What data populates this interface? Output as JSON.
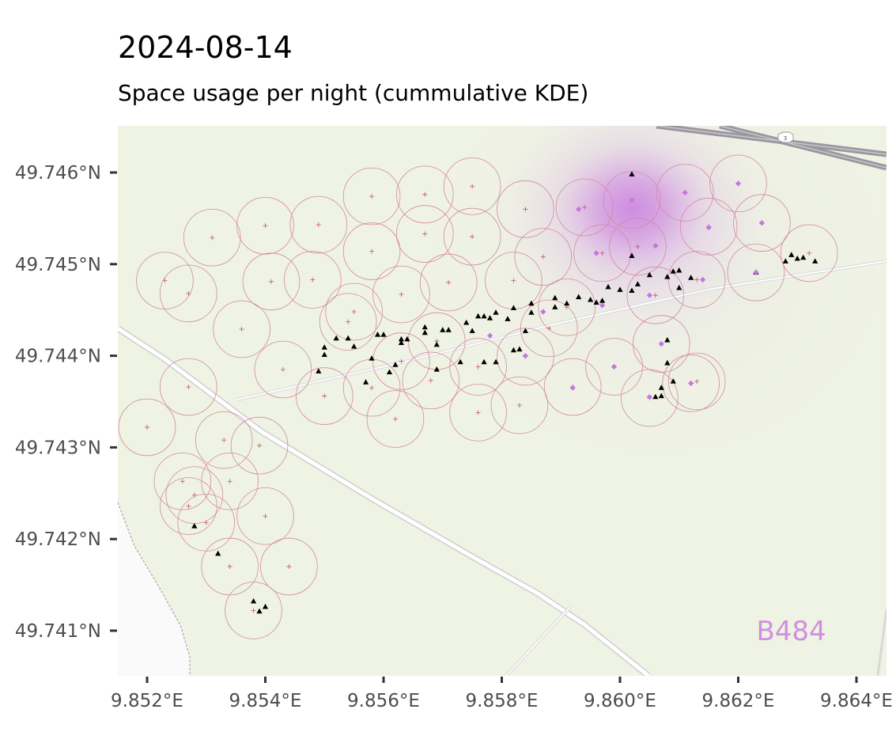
{
  "title": "2024-08-14",
  "subtitle": "Space usage per night (cummulative KDE)",
  "colors": {
    "land": "#eff3e3",
    "bare": "#fafafa",
    "road": "#ffffff",
    "road_edge": "#cfcfcf",
    "highway": "#9a979e",
    "circle": "#d38aa0",
    "center": "#c0566c",
    "locations": "#000000",
    "kde_points": "#c774e0",
    "kde": "#c774e0",
    "annotation": "#d08fe0"
  },
  "chart_data": {
    "type": "scatter",
    "title": "2024-08-14",
    "subtitle": "Space usage per night (cummulative KDE)",
    "xlabel": "",
    "ylabel": "",
    "xlim": [
      9.8515,
      9.8645
    ],
    "ylim": [
      49.7405,
      49.7465
    ],
    "grid": false,
    "legend": "none",
    "x_ticks": [
      {
        "value": 9.852,
        "label": "9.852°E"
      },
      {
        "value": 9.854,
        "label": "9.854°E"
      },
      {
        "value": 9.856,
        "label": "9.856°E"
      },
      {
        "value": 9.858,
        "label": "9.858°E"
      },
      {
        "value": 9.86,
        "label": "9.860°E"
      },
      {
        "value": 9.862,
        "label": "9.862°E"
      },
      {
        "value": 9.864,
        "label": "9.864°E"
      }
    ],
    "y_ticks": [
      {
        "value": 49.741,
        "label": "49.741°N"
      },
      {
        "value": 49.742,
        "label": "49.742°N"
      },
      {
        "value": 49.743,
        "label": "49.743°N"
      },
      {
        "value": 49.744,
        "label": "49.744°N"
      },
      {
        "value": 49.745,
        "label": "49.745°N"
      },
      {
        "value": 49.746,
        "label": "49.746°N"
      }
    ],
    "annotation": {
      "text": "B484",
      "x": 9.8633,
      "y": 49.741
    },
    "kde_peak": {
      "x": 9.8602,
      "y": 49.7456
    },
    "circle_radius_deg_lon": 0.00048,
    "circle_centers": [
      [
        9.852,
        49.74322
      ],
      [
        9.8526,
        49.74263
      ],
      [
        9.853,
        49.74218
      ],
      [
        9.8533,
        49.74308
      ],
      [
        9.8534,
        49.74263
      ],
      [
        9.8534,
        49.7417
      ],
      [
        9.8539,
        49.74302
      ],
      [
        9.854,
        49.74225
      ],
      [
        9.8544,
        49.7417
      ],
      [
        9.8538,
        49.74122
      ],
      [
        9.8527,
        49.74236
      ],
      [
        9.8528,
        49.74248
      ],
      [
        9.8527,
        49.74366
      ],
      [
        9.8523,
        49.74482
      ],
      [
        9.8527,
        49.74468
      ],
      [
        9.8531,
        49.74529
      ],
      [
        9.854,
        49.74542
      ],
      [
        9.8536,
        49.74429
      ],
      [
        9.8541,
        49.74481
      ],
      [
        9.8549,
        49.74543
      ],
      [
        9.8554,
        49.74437
      ],
      [
        9.8548,
        49.74483
      ],
      [
        9.8558,
        49.74574
      ],
      [
        9.8558,
        49.74514
      ],
      [
        9.8555,
        49.74448
      ],
      [
        9.8543,
        49.74385
      ],
      [
        9.855,
        49.74356
      ],
      [
        9.8558,
        49.74365
      ],
      [
        9.8563,
        49.74394
      ],
      [
        9.8563,
        49.74467
      ],
      [
        9.8567,
        49.74576
      ],
      [
        9.8567,
        49.74533
      ],
      [
        9.8571,
        49.7448
      ],
      [
        9.8575,
        49.74585
      ],
      [
        9.8575,
        49.7453
      ],
      [
        9.8569,
        49.74416
      ],
      [
        9.8568,
        49.74373
      ],
      [
        9.8562,
        49.74331
      ],
      [
        9.8576,
        49.74388
      ],
      [
        9.8576,
        49.74338
      ],
      [
        9.8582,
        49.74482
      ],
      [
        9.8584,
        49.7456
      ],
      [
        9.8587,
        49.74508
      ],
      [
        9.8583,
        49.74346
      ],
      [
        9.8584,
        49.74399
      ],
      [
        9.8592,
        49.74366
      ],
      [
        9.8594,
        49.74562
      ],
      [
        9.8597,
        49.74512
      ],
      [
        9.8599,
        49.74388
      ],
      [
        9.8602,
        49.7457
      ],
      [
        9.8603,
        49.74519
      ],
      [
        9.8606,
        49.74466
      ],
      [
        9.8605,
        49.74354
      ],
      [
        9.8607,
        49.74413
      ],
      [
        9.8611,
        49.74578
      ],
      [
        9.8615,
        49.74541
      ],
      [
        9.8613,
        49.74483
      ],
      [
        9.8612,
        49.7437
      ],
      [
        9.862,
        49.74588
      ],
      [
        9.8624,
        49.74545
      ],
      [
        9.8623,
        49.74491
      ],
      [
        9.8632,
        49.74512
      ],
      [
        9.8591,
        49.74453
      ],
      [
        9.8588,
        49.7443
      ],
      [
        9.8613,
        49.74372
      ]
    ],
    "series": [
      {
        "marker": "triangle",
        "points": [
          [
            9.8528,
            49.74214
          ],
          [
            9.8532,
            49.74184
          ],
          [
            9.8538,
            49.74132
          ],
          [
            9.854,
            49.74126
          ],
          [
            9.8539,
            49.74121
          ],
          [
            9.8549,
            49.74383
          ],
          [
            9.855,
            49.74401
          ],
          [
            9.855,
            49.74409
          ],
          [
            9.8552,
            49.74419
          ],
          [
            9.8554,
            49.74419
          ],
          [
            9.8555,
            49.7441
          ],
          [
            9.8557,
            49.74371
          ],
          [
            9.8558,
            49.74397
          ],
          [
            9.8559,
            49.74423
          ],
          [
            9.856,
            49.74423
          ],
          [
            9.8561,
            49.74382
          ],
          [
            9.8562,
            49.7439
          ],
          [
            9.8563,
            49.74414
          ],
          [
            9.8563,
            49.74418
          ],
          [
            9.8564,
            49.74418
          ],
          [
            9.8567,
            49.74425
          ],
          [
            9.8567,
            49.74431
          ],
          [
            9.8569,
            49.74385
          ],
          [
            9.8569,
            49.74412
          ],
          [
            9.857,
            49.74428
          ],
          [
            9.8571,
            49.74428
          ],
          [
            9.8573,
            49.74393
          ],
          [
            9.8574,
            49.74436
          ],
          [
            9.8575,
            49.74427
          ],
          [
            9.8576,
            49.74443
          ],
          [
            9.8577,
            49.74443
          ],
          [
            9.8578,
            49.74441
          ],
          [
            9.8577,
            49.74393
          ],
          [
            9.8579,
            49.74393
          ],
          [
            9.8579,
            49.74447
          ],
          [
            9.8581,
            49.7444
          ],
          [
            9.8582,
            49.74406
          ],
          [
            9.8583,
            49.74407
          ],
          [
            9.8582,
            49.74452
          ],
          [
            9.8584,
            49.74427
          ],
          [
            9.8585,
            49.74457
          ],
          [
            9.8585,
            49.74447
          ],
          [
            9.8589,
            49.74453
          ],
          [
            9.8589,
            49.74463
          ],
          [
            9.8591,
            49.74457
          ],
          [
            9.8593,
            49.74464
          ],
          [
            9.8595,
            49.74461
          ],
          [
            9.8596,
            49.74458
          ],
          [
            9.8597,
            49.7446
          ],
          [
            9.8598,
            49.74475
          ],
          [
            9.86,
            49.74472
          ],
          [
            9.8602,
            49.74471
          ],
          [
            9.8602,
            49.74509
          ],
          [
            9.8602,
            49.74598
          ],
          [
            9.8603,
            49.74478
          ],
          [
            9.8605,
            49.74488
          ],
          [
            9.8606,
            49.74355
          ],
          [
            9.8607,
            49.74356
          ],
          [
            9.8607,
            49.74365
          ],
          [
            9.8608,
            49.74392
          ],
          [
            9.8608,
            49.74417
          ],
          [
            9.8608,
            49.74486
          ],
          [
            9.8609,
            49.74372
          ],
          [
            9.8609,
            49.74492
          ],
          [
            9.861,
            49.74474
          ],
          [
            9.861,
            49.74493
          ],
          [
            9.8612,
            49.74485
          ],
          [
            9.8623,
            49.74491
          ],
          [
            9.8628,
            49.74503
          ],
          [
            9.8629,
            49.7451
          ],
          [
            9.863,
            49.74506
          ],
          [
            9.8631,
            49.74507
          ],
          [
            9.8633,
            49.74503
          ]
        ]
      },
      {
        "marker": "diamond",
        "points": [
          [
            9.8578,
            49.74422
          ],
          [
            9.8584,
            49.744
          ],
          [
            9.8587,
            49.74448
          ],
          [
            9.8592,
            49.74365
          ],
          [
            9.8593,
            49.7456
          ],
          [
            9.8596,
            49.74512
          ],
          [
            9.8597,
            49.74455
          ],
          [
            9.8599,
            49.74388
          ],
          [
            9.8602,
            49.7457
          ],
          [
            9.8605,
            49.74466
          ],
          [
            9.8605,
            49.74355
          ],
          [
            9.8606,
            49.7452
          ],
          [
            9.8607,
            49.74413
          ],
          [
            9.8611,
            49.74578
          ],
          [
            9.8612,
            49.7437
          ],
          [
            9.8614,
            49.74483
          ],
          [
            9.8615,
            49.7454
          ],
          [
            9.862,
            49.74588
          ],
          [
            9.8623,
            49.74491
          ],
          [
            9.8624,
            49.74545
          ]
        ]
      }
    ]
  }
}
